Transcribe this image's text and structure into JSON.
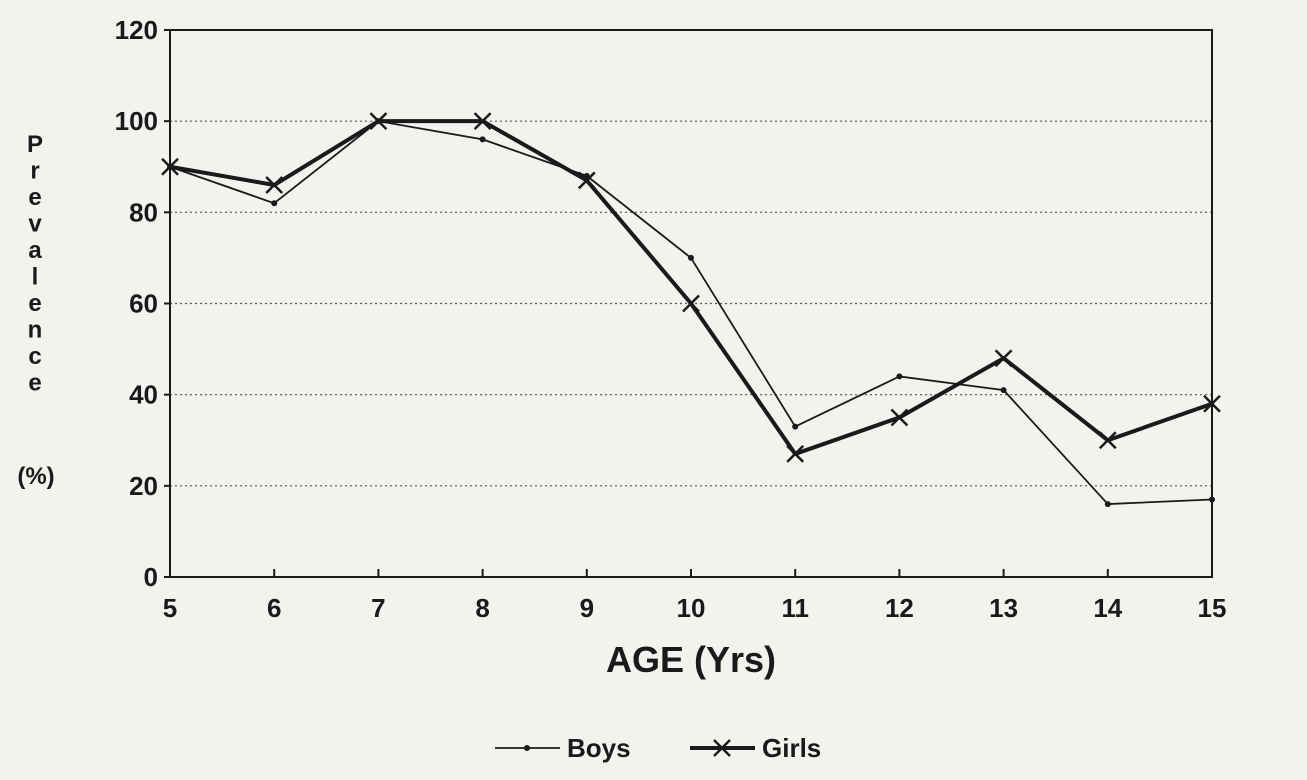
{
  "chart_data": {
    "type": "line",
    "x": [
      5,
      6,
      7,
      8,
      9,
      10,
      11,
      12,
      13,
      14,
      15
    ],
    "xlim": [
      5,
      15
    ],
    "ylim": [
      0,
      120
    ],
    "x_ticks": [
      "5",
      "6",
      "7",
      "8",
      "9",
      "10",
      "11",
      "12",
      "13",
      "14",
      "15"
    ],
    "y_ticks": [
      "0",
      "20",
      "40",
      "60",
      "80",
      "100",
      "120"
    ],
    "y_tick_values": [
      0,
      20,
      40,
      60,
      80,
      100,
      120
    ],
    "xlabel": "AGE (Yrs)",
    "ylabel": "Prevalence",
    "ylabel_unit": "(%)",
    "grid": "horizontal dotted",
    "legend_position": "bottom-center",
    "series": [
      {
        "name": "Boys",
        "marker": "dot",
        "color": "#1a1a1a",
        "values": [
          90,
          82,
          100,
          96,
          88,
          70,
          33,
          44,
          41,
          16,
          17
        ]
      },
      {
        "name": "Girls",
        "marker": "x",
        "color": "#1a1a1a",
        "values": [
          90,
          86,
          100,
          100,
          87,
          60,
          27,
          35,
          48,
          30,
          38
        ]
      }
    ]
  }
}
